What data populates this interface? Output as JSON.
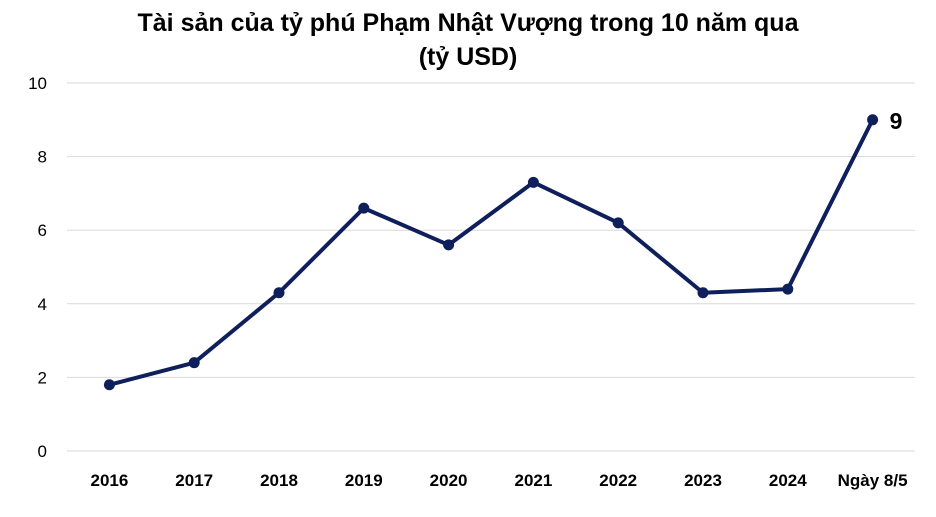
{
  "title_line1": "Tài sản của tỷ phú Phạm Nhật Vượng trong 10 năm qua",
  "title_line2": "(tỷ USD)",
  "chart_data": {
    "type": "line",
    "title": "Tài sản của tỷ phú Phạm Nhật Vượng trong 10 năm qua (tỷ USD)",
    "categories": [
      "2016",
      "2017",
      "2018",
      "2019",
      "2020",
      "2021",
      "2022",
      "2023",
      "2024",
      "Ngày 8/5"
    ],
    "series": [
      {
        "values": [
          1.8,
          2.4,
          4.3,
          6.6,
          5.6,
          7.3,
          6.2,
          4.3,
          4.4,
          9
        ]
      }
    ],
    "ylim": [
      0,
      10
    ],
    "yticks": [
      "0",
      "2",
      "4",
      "6",
      "8",
      "10"
    ],
    "grid": true,
    "data_labels": [
      {
        "index": 9,
        "text": "9"
      }
    ],
    "line_color": "#0f1f5c",
    "grid_color": "#d9d9d9"
  }
}
